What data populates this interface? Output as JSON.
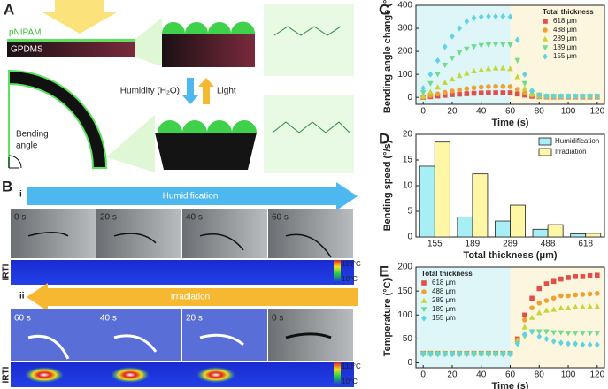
{
  "panel_a": {
    "label": "A",
    "layer_top": "pNIPAM",
    "layer_bottom": "GPDMS",
    "stimulus_1": "Humidity (H₂O)",
    "stimulus_2": "Light",
    "angle_label": [
      "Bending",
      "angle"
    ]
  },
  "panel_b": {
    "label": "B",
    "irti": "IRTI",
    "scale_max": "110°C",
    "scale_min": "10°C",
    "row_i": {
      "label": "i",
      "arrow": "Humidification",
      "times": [
        "0 s",
        "20 s",
        "40 s",
        "60 s"
      ]
    },
    "row_ii": {
      "label": "ii",
      "arrow": "Irradiation",
      "times": [
        "60 s",
        "40 s",
        "20 s",
        "0 s"
      ]
    }
  },
  "chart_data": [
    {
      "type": "scatter",
      "label": "C",
      "xlabel": "Time (s)",
      "ylabel": "Bending angle change (°)",
      "legend_title": "Total thickness",
      "legend": "upper-right",
      "regions": [
        {
          "from": -5,
          "to": 60,
          "color": "#dff6f8"
        },
        {
          "from": 60,
          "to": 125,
          "color": "#fcf6de"
        }
      ],
      "x": [
        0,
        5,
        10,
        15,
        20,
        25,
        30,
        35,
        40,
        45,
        50,
        55,
        60,
        65,
        70,
        75,
        80,
        85,
        90,
        95,
        100,
        105,
        110,
        115,
        120
      ],
      "xlim": [
        -5,
        125
      ],
      "xticks": [
        0,
        20,
        40,
        60,
        80,
        100,
        120
      ],
      "ylim": [
        -30,
        400
      ],
      "yticks": [
        0,
        100,
        200,
        300,
        400
      ],
      "series": [
        {
          "name": "618 μm",
          "color": "#e0504a",
          "marker": "square",
          "values": [
            0,
            3,
            6,
            9,
            12,
            14,
            16,
            18,
            19,
            20,
            20,
            20,
            20,
            15,
            10,
            5,
            3,
            2,
            2,
            2,
            2,
            2,
            2,
            2,
            2
          ]
        },
        {
          "name": "488 μm",
          "color": "#f0a030",
          "marker": "circle",
          "values": [
            0,
            8,
            15,
            22,
            28,
            33,
            38,
            42,
            45,
            47,
            48,
            48,
            47,
            35,
            20,
            10,
            5,
            4,
            4,
            4,
            4,
            4,
            4,
            4,
            4
          ]
        },
        {
          "name": "289 μm",
          "color": "#c5d637",
          "marker": "triangle-up",
          "values": [
            5,
            25,
            45,
            65,
            80,
            95,
            105,
            115,
            120,
            125,
            128,
            128,
            125,
            90,
            40,
            15,
            5,
            5,
            5,
            5,
            5,
            5,
            5,
            5,
            5
          ]
        },
        {
          "name": "189 μm",
          "color": "#6fdc8c",
          "marker": "triangle-down",
          "values": [
            20,
            60,
            100,
            140,
            170,
            195,
            210,
            220,
            225,
            228,
            230,
            230,
            228,
            160,
            60,
            20,
            10,
            5,
            5,
            5,
            5,
            5,
            5,
            5,
            5
          ]
        },
        {
          "name": "155 μm",
          "color": "#5ed3e6",
          "marker": "diamond",
          "values": [
            40,
            100,
            160,
            220,
            265,
            300,
            330,
            345,
            350,
            352,
            352,
            352,
            350,
            250,
            100,
            30,
            10,
            5,
            5,
            5,
            5,
            5,
            5,
            5,
            5
          ]
        }
      ]
    },
    {
      "type": "bar",
      "label": "D",
      "xlabel": "Total thickness (μm)",
      "ylabel": "Bending speed (°/s)",
      "legend": "upper-right",
      "categories": [
        "155",
        "189",
        "289",
        "488",
        "618"
      ],
      "ylim": [
        0,
        20
      ],
      "yticks": [
        0,
        5,
        10,
        15,
        20
      ],
      "series": [
        {
          "name": "Humidification",
          "color": "#a8eff5",
          "values": [
            13.8,
            3.9,
            3.1,
            1.5,
            0.6
          ]
        },
        {
          "name": "Irradiation",
          "color": "#fff6a6",
          "values": [
            18.5,
            12.3,
            6.2,
            2.4,
            0.7
          ]
        }
      ]
    },
    {
      "type": "scatter",
      "label": "E",
      "xlabel": "Time (s)",
      "ylabel": "Temperature (°C)",
      "legend_title": "Total thickness",
      "legend": "upper-left",
      "regions": [
        {
          "from": -5,
          "to": 60,
          "color": "#dff6f8"
        },
        {
          "from": 60,
          "to": 125,
          "color": "#fcf6de"
        }
      ],
      "x": [
        0,
        5,
        10,
        15,
        20,
        25,
        30,
        35,
        40,
        45,
        50,
        55,
        60,
        65,
        70,
        75,
        80,
        85,
        90,
        95,
        100,
        105,
        110,
        115,
        120
      ],
      "xlim": [
        -5,
        125
      ],
      "xticks": [
        0,
        20,
        40,
        60,
        80,
        100,
        120
      ],
      "ylim": [
        -10,
        200
      ],
      "yticks": [
        0,
        50,
        100,
        150,
        200
      ],
      "series": [
        {
          "name": "618 μm",
          "color": "#e0504a",
          "marker": "square",
          "values": [
            20,
            20,
            20,
            20,
            20,
            20,
            20,
            20,
            20,
            20,
            20,
            20,
            20,
            50,
            100,
            135,
            155,
            165,
            170,
            175,
            178,
            180,
            180,
            182,
            183
          ]
        },
        {
          "name": "488 μm",
          "color": "#f0a030",
          "marker": "circle",
          "values": [
            20,
            20,
            20,
            20,
            20,
            20,
            20,
            20,
            20,
            20,
            20,
            20,
            20,
            48,
            90,
            115,
            125,
            130,
            135,
            140,
            140,
            142,
            143,
            144,
            145
          ]
        },
        {
          "name": "289 μm",
          "color": "#c5d637",
          "marker": "triangle-up",
          "values": [
            20,
            20,
            20,
            20,
            20,
            20,
            20,
            20,
            20,
            20,
            20,
            20,
            20,
            45,
            75,
            95,
            105,
            110,
            112,
            115,
            115,
            117,
            117,
            118,
            118
          ]
        },
        {
          "name": "189 μm",
          "color": "#6fdc8c",
          "marker": "triangle-down",
          "values": [
            19,
            19,
            19,
            19,
            19,
            19,
            19,
            19,
            19,
            19,
            19,
            19,
            19,
            40,
            55,
            65,
            65,
            65,
            63,
            63,
            62,
            62,
            62,
            62,
            62
          ]
        },
        {
          "name": "155 μm",
          "color": "#5ed3e6",
          "marker": "diamond",
          "values": [
            18,
            18,
            18,
            18,
            18,
            18,
            18,
            18,
            18,
            18,
            18,
            18,
            18,
            40,
            60,
            65,
            55,
            50,
            45,
            42,
            40,
            40,
            38,
            38,
            38
          ]
        }
      ]
    }
  ]
}
